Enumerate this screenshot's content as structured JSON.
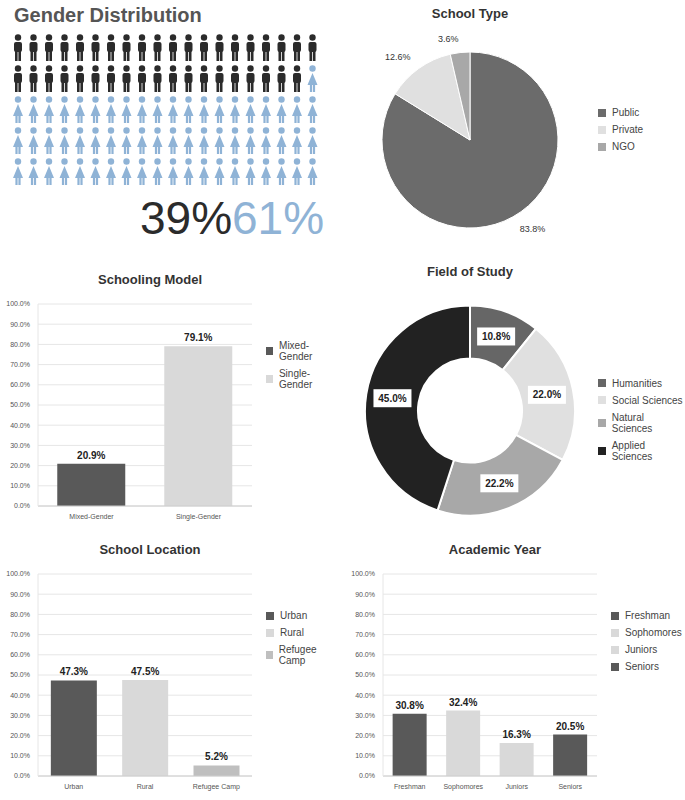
{
  "chart_data": [
    {
      "type": "pictogram",
      "title": "Gender Distribution",
      "values": [
        39,
        61
      ],
      "value_labels": [
        "39%",
        "61%"
      ],
      "colors": [
        "#2b2b2b",
        "#8fb3d6"
      ]
    },
    {
      "type": "pie",
      "title": "School Type",
      "categories": [
        "Public",
        "Private",
        "NGO"
      ],
      "values": [
        83.8,
        12.6,
        3.6
      ],
      "value_labels": [
        "83.8%",
        "12.6%",
        "3.6%"
      ],
      "colors": [
        "#6b6b6b",
        "#e0e0e0",
        "#a8a8a8"
      ],
      "legend": "right",
      "data_labels": true
    },
    {
      "type": "bar",
      "title": "Schooling Model",
      "categories": [
        "Mixed-Gender",
        "Single-Gender"
      ],
      "values": [
        20.9,
        79.1
      ],
      "value_labels": [
        "20.9%",
        "79.1%"
      ],
      "colors": [
        "#595959",
        "#d9d9d9"
      ],
      "ylim": [
        0,
        100
      ],
      "yticks": [
        {
          "value": 0,
          "label": "0.0%"
        },
        {
          "value": 10,
          "label": "10.0%"
        },
        {
          "value": 20,
          "label": "20.0%"
        },
        {
          "value": 30,
          "label": "30.0%"
        },
        {
          "value": 40,
          "label": "40.0%"
        },
        {
          "value": 50,
          "label": "50.0%"
        },
        {
          "value": 60,
          "label": "60.0%"
        },
        {
          "value": 70,
          "label": "70.0%"
        },
        {
          "value": 80,
          "label": "80.0%"
        },
        {
          "value": 90,
          "label": "90.0%"
        },
        {
          "value": 100,
          "label": "100.0%"
        }
      ],
      "grid": true,
      "legend": "right",
      "data_labels": true
    },
    {
      "type": "donut",
      "title": "Field of Study",
      "categories": [
        "Humanities",
        "Social Sciences",
        "Natural Sciences",
        "Applied Sciences"
      ],
      "values": [
        10.8,
        22.0,
        22.2,
        45.0
      ],
      "value_labels": [
        "10.8%",
        "22.0%",
        "22.2%",
        "45.0%"
      ],
      "colors": [
        "#666666",
        "#e0e0e0",
        "#a8a8a8",
        "#222222"
      ],
      "legend": "right",
      "data_labels": true
    },
    {
      "type": "bar",
      "title": "School Location",
      "categories": [
        "Urban",
        "Rural",
        "Refugee Camp"
      ],
      "values": [
        47.3,
        47.5,
        5.2
      ],
      "value_labels": [
        "47.3%",
        "47.5%",
        "5.2%"
      ],
      "colors": [
        "#595959",
        "#d9d9d9",
        "#bfbfbf"
      ],
      "ylim": [
        0,
        100
      ],
      "yticks": [
        {
          "value": 0,
          "label": "0.0%"
        },
        {
          "value": 10,
          "label": "10.0%"
        },
        {
          "value": 20,
          "label": "20.0%"
        },
        {
          "value": 30,
          "label": "30.0%"
        },
        {
          "value": 40,
          "label": "40.0%"
        },
        {
          "value": 50,
          "label": "50.0%"
        },
        {
          "value": 60,
          "label": "60.0%"
        },
        {
          "value": 70,
          "label": "70.0%"
        },
        {
          "value": 80,
          "label": "80.0%"
        },
        {
          "value": 90,
          "label": "90.0%"
        },
        {
          "value": 100,
          "label": "100.0%"
        }
      ],
      "grid": true,
      "legend": "right",
      "data_labels": true
    },
    {
      "type": "bar",
      "title": "Academic Year",
      "categories": [
        "Freshman",
        "Sophomores",
        "Juniors",
        "Seniors"
      ],
      "values": [
        30.8,
        32.4,
        16.3,
        20.5
      ],
      "value_labels": [
        "30.8%",
        "32.4%",
        "16.3%",
        "20.5%"
      ],
      "colors": [
        "#595959",
        "#d9d9d9",
        "#d9d9d9",
        "#595959"
      ],
      "ylim": [
        0,
        100
      ],
      "yticks": [
        {
          "value": 0,
          "label": "0.0%"
        },
        {
          "value": 10,
          "label": "10.0%"
        },
        {
          "value": 20,
          "label": "20.0%"
        },
        {
          "value": 30,
          "label": "30.0%"
        },
        {
          "value": 40,
          "label": "40.0%"
        },
        {
          "value": 50,
          "label": "50.0%"
        },
        {
          "value": 60,
          "label": "60.0%"
        },
        {
          "value": 70,
          "label": "70.0%"
        },
        {
          "value": 80,
          "label": "80.0%"
        },
        {
          "value": 90,
          "label": "90.0%"
        },
        {
          "value": 100,
          "label": "100.0%"
        }
      ],
      "grid": true,
      "legend": "right",
      "data_labels": true
    }
  ]
}
